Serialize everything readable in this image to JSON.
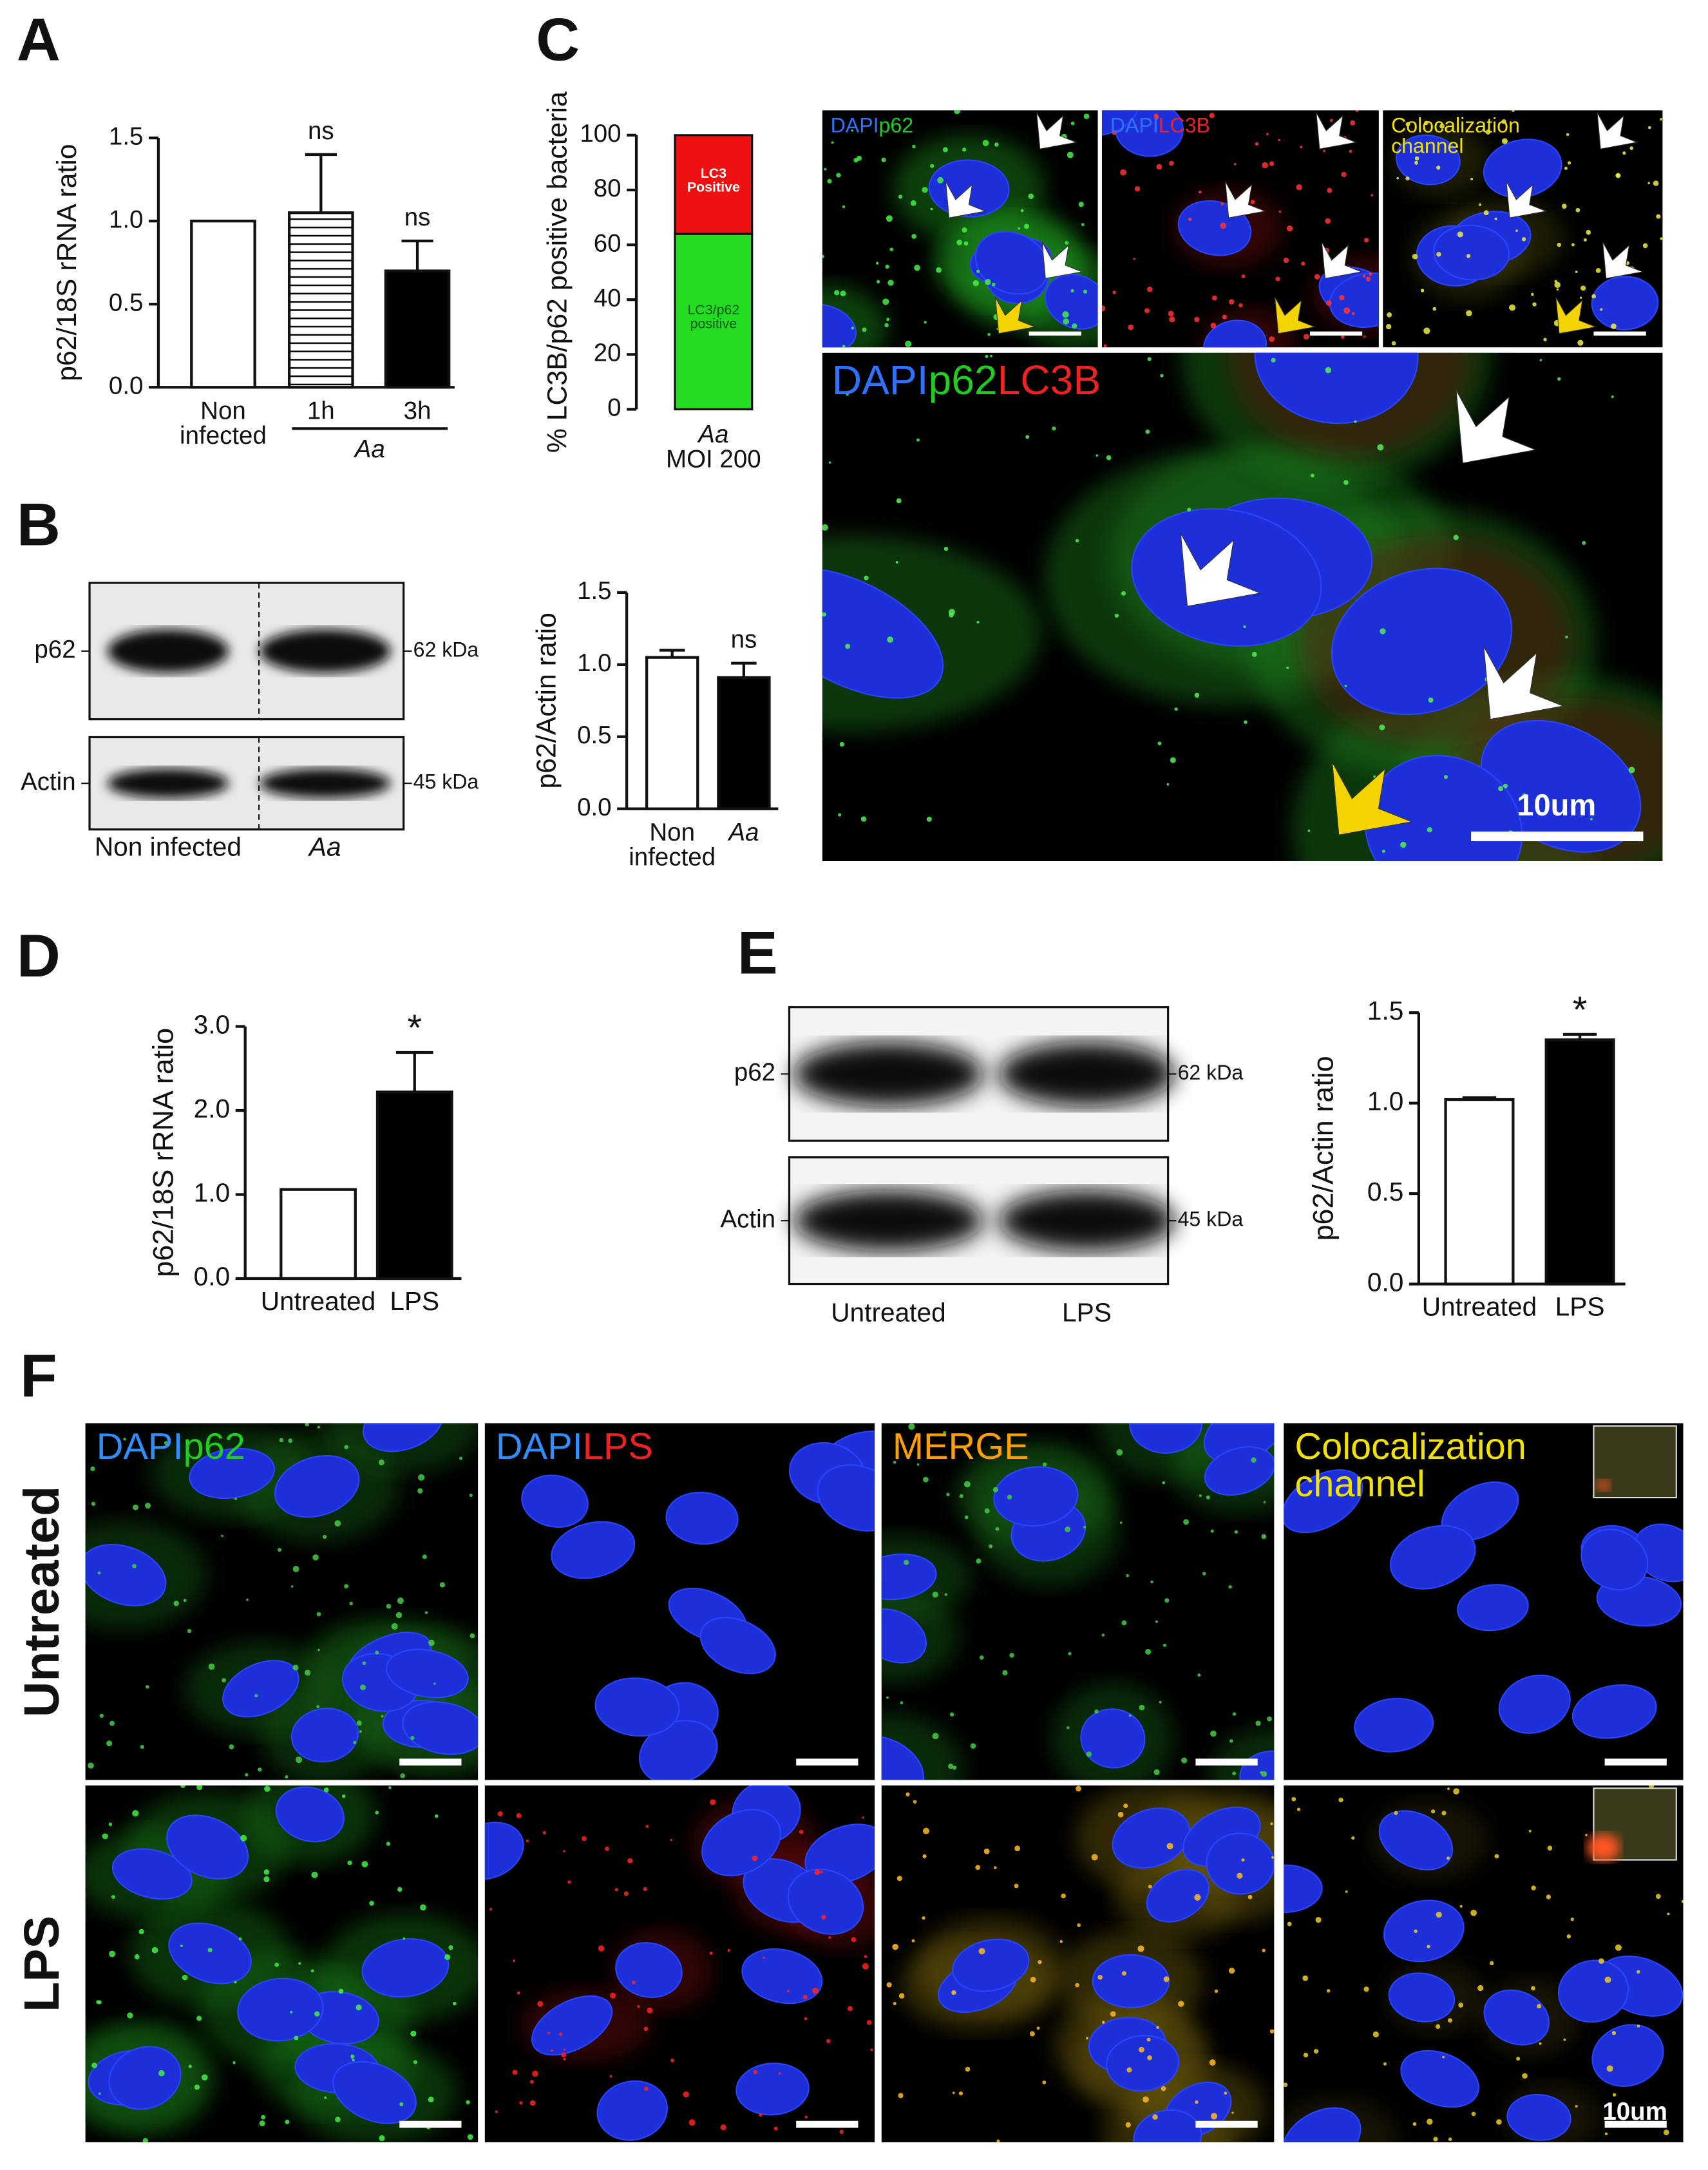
{
  "panel_letters": [
    "A",
    "B",
    "C",
    "D",
    "E",
    "F"
  ],
  "chart_data": [
    {
      "type": "bar",
      "ylabel": "p62/18S rRNA ratio",
      "categories": [
        "Non infected",
        "1h",
        "3h"
      ],
      "group_label": "Aa",
      "values": [
        1.0,
        1.05,
        0.7
      ],
      "errors": [
        null,
        0.35,
        0.18
      ],
      "annotations": [
        null,
        "ns",
        "ns"
      ],
      "colors": [
        "#ffffff",
        "#ffffff",
        "#000000"
      ],
      "hatch": [
        false,
        true,
        false
      ],
      "ylim": [
        0,
        1.5
      ],
      "yticks": [
        {
          "value": 0,
          "label": "0.0"
        },
        {
          "value": 0.5,
          "label": "0.5"
        },
        {
          "value": 1,
          "label": "1.0"
        },
        {
          "value": 1.5,
          "label": "1.5"
        }
      ]
    },
    {
      "type": "stacked_bar",
      "ylabel": "% LC3B/p62 positive bacteria",
      "categories": [
        "Aa"
      ],
      "category_sublabels": [
        "MOI 200"
      ],
      "series": [
        {
          "name": "LC3/p62 positive",
          "color": "#22dd22",
          "values": [
            64
          ]
        },
        {
          "name": "LC3 Positive",
          "color": "#ee1111",
          "values": [
            36
          ]
        }
      ],
      "ylim": [
        0,
        100
      ],
      "yticks": [
        0,
        20,
        40,
        60,
        80,
        100
      ]
    },
    {
      "type": "bar",
      "ylabel": "p62/Actin ratio",
      "categories": [
        "Non infected",
        "Aa"
      ],
      "category_italic": [
        false,
        true
      ],
      "values": [
        1.05,
        0.91
      ],
      "errors": [
        0.05,
        0.1
      ],
      "annotations": [
        null,
        "ns"
      ],
      "colors": [
        "#ffffff",
        "#000000"
      ],
      "ylim": [
        0,
        1.5
      ],
      "yticks": [
        {
          "value": 0,
          "label": "0.0"
        },
        {
          "value": 0.5,
          "label": "0.5"
        },
        {
          "value": 1,
          "label": "1.0"
        },
        {
          "value": 1.5,
          "label": "1.5"
        }
      ]
    },
    {
      "type": "bar",
      "ylabel": "p62/18S rRNA ratio",
      "categories": [
        "Untreated",
        "LPS"
      ],
      "values": [
        1.06,
        2.22
      ],
      "errors": [
        null,
        0.47
      ],
      "annotations": [
        null,
        "*"
      ],
      "colors": [
        "#ffffff",
        "#000000"
      ],
      "ylim": [
        0,
        3
      ],
      "yticks": [
        {
          "value": 0,
          "label": "0.0"
        },
        {
          "value": 1,
          "label": "1.0"
        },
        {
          "value": 2,
          "label": "2.0"
        },
        {
          "value": 3,
          "label": "3.0"
        }
      ]
    },
    {
      "type": "bar",
      "ylabel": "p62/Actin ratio",
      "categories": [
        "Untreated",
        "LPS"
      ],
      "values": [
        1.02,
        1.35
      ],
      "errors": [
        0.01,
        0.03
      ],
      "annotations": [
        null,
        "*"
      ],
      "colors": [
        "#ffffff",
        "#000000"
      ],
      "ylim": [
        0,
        1.5
      ],
      "yticks": [
        {
          "value": 0,
          "label": "0.0"
        },
        {
          "value": 0.5,
          "label": "0.5"
        },
        {
          "value": 1,
          "label": "1.0"
        },
        {
          "value": 1.5,
          "label": "1.5"
        }
      ]
    }
  ],
  "blots": [
    {
      "rows": [
        {
          "label": "p62",
          "marker": "62 kDa"
        },
        {
          "label": "Actin",
          "marker": "45 kDa"
        }
      ],
      "lanes": [
        "Non infected",
        "Aa"
      ],
      "lane_italic": [
        false,
        true
      ],
      "divider": true
    },
    {
      "rows": [
        {
          "label": "p62",
          "marker": "62 kDa"
        },
        {
          "label": "Actin",
          "marker": "45 kDa"
        }
      ],
      "lanes": [
        "Untreated",
        "LPS"
      ],
      "lane_italic": [
        false,
        false
      ],
      "divider": false
    }
  ],
  "micrographs": {
    "panel_c": {
      "small": [
        [
          {
            "text": "DAPI",
            "color": "#2f72ff"
          },
          {
            "text": "p62",
            "color": "#22cc22"
          }
        ],
        [
          {
            "text": "DAPI",
            "color": "#2f72ff"
          },
          {
            "text": "LC3B",
            "color": "#ee2222"
          }
        ],
        [
          {
            "text": "Colocalization channel",
            "color": "#f2e200"
          }
        ]
      ],
      "large": [
        {
          "text": "DAPI",
          "color": "#2f72ff"
        },
        {
          "text": "p62",
          "color": "#22cc22"
        },
        {
          "text": "LC3B",
          "color": "#ee2222"
        }
      ],
      "scale": "10um"
    },
    "panel_f": {
      "columns": [
        [
          {
            "text": "DAPI",
            "color": "#2f8fff"
          },
          {
            "text": "p62",
            "color": "#22cc22"
          }
        ],
        [
          {
            "text": "DAPI",
            "color": "#2f8fff"
          },
          {
            "text": "LPS",
            "color": "#ee2222"
          }
        ],
        [
          {
            "text": "MERGE",
            "color": "#ff9f00"
          }
        ],
        [
          {
            "text": "Colocalization channel",
            "color": "#f2e200"
          }
        ]
      ],
      "rows": [
        "Untreated",
        "LPS"
      ],
      "scale": "10um"
    }
  }
}
